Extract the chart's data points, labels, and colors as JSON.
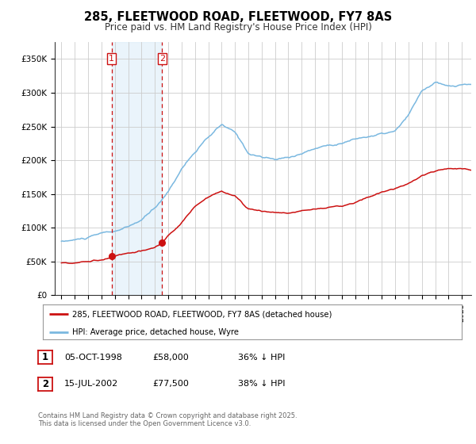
{
  "title": "285, FLEETWOOD ROAD, FLEETWOOD, FY7 8AS",
  "subtitle": "Price paid vs. HM Land Registry's House Price Index (HPI)",
  "yticks": [
    0,
    50000,
    100000,
    150000,
    200000,
    250000,
    300000,
    350000
  ],
  "ytick_labels": [
    "£0",
    "£50K",
    "£100K",
    "£150K",
    "£200K",
    "£250K",
    "£300K",
    "£350K"
  ],
  "ylim": [
    0,
    375000
  ],
  "xlim_start": 1994.5,
  "xlim_end": 2025.7,
  "hpi_color": "#7ab8e0",
  "price_color": "#cc1111",
  "vline_color": "#cc1111",
  "purchase1_date": 1998.75,
  "purchase1_price": 58000,
  "purchase1_label": "1",
  "purchase2_date": 2002.54,
  "purchase2_price": 77500,
  "purchase2_label": "2",
  "legend_line1": "285, FLEETWOOD ROAD, FLEETWOOD, FY7 8AS (detached house)",
  "legend_line2": "HPI: Average price, detached house, Wyre",
  "table_row1": [
    "1",
    "05-OCT-1998",
    "£58,000",
    "36% ↓ HPI"
  ],
  "table_row2": [
    "2",
    "15-JUL-2002",
    "£77,500",
    "38% ↓ HPI"
  ],
  "footer": "Contains HM Land Registry data © Crown copyright and database right 2025.\nThis data is licensed under the Open Government Licence v3.0.",
  "bg_fill_color": "#d6eaf8",
  "bg_fill_alpha": 0.5
}
